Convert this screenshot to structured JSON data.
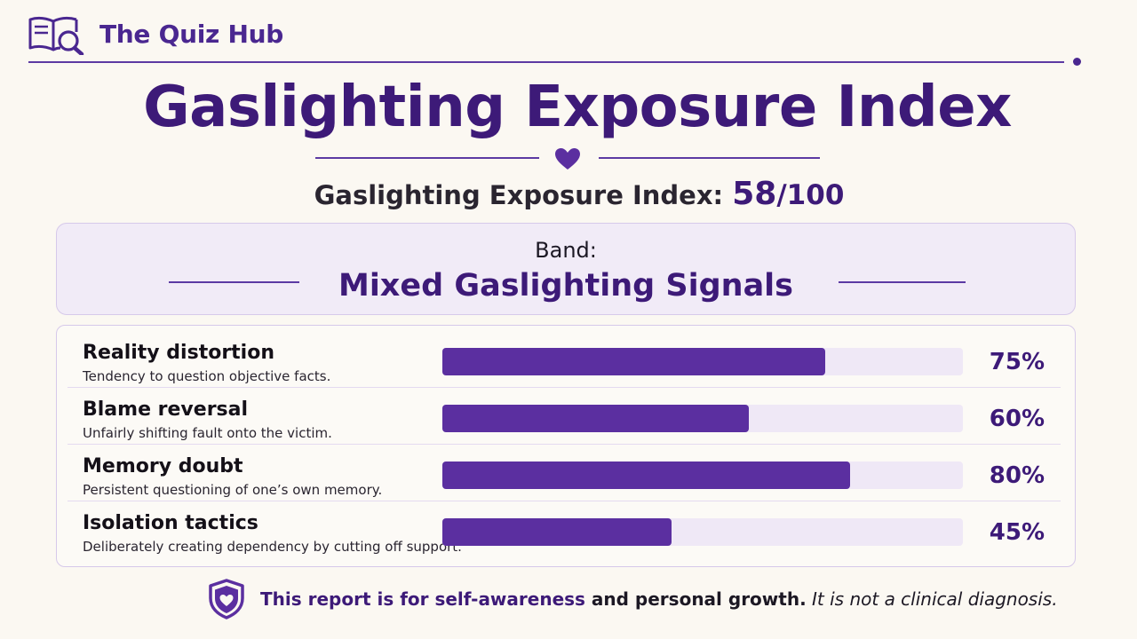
{
  "brand": {
    "name": "The Quiz Hub",
    "icon": "book-magnifier-icon"
  },
  "title": "Gaslighting Exposure Index",
  "score": {
    "label": "Gaslighting Exposure Index:",
    "value": "58",
    "max": "/100"
  },
  "band": {
    "label": "Band:",
    "value": "Mixed Gaslighting Signals"
  },
  "metrics": [
    {
      "name": "Reality distortion",
      "description": "Tendency to question objective facts.",
      "percent_text": "75%",
      "percent": 75
    },
    {
      "name": "Blame reversal",
      "description": "Unfairly shifting fault onto the victim.",
      "percent_text": "60%",
      "percent": 60
    },
    {
      "name": "Memory doubt",
      "description": "Persistent questioning of one’s own memory.",
      "percent_text": "80%",
      "percent": 80
    },
    {
      "name": "Isolation tactics",
      "description": "Deliberately creating dependency by cutting off support.",
      "percent_text": "45%",
      "percent": 45
    }
  ],
  "footer": {
    "icon": "shield-heart-icon",
    "part1": "This report is for self-awareness",
    "part2": " and personal growth.",
    "part3": " It is not a clinical diagnosis."
  },
  "colors": {
    "accent": "#3d1a78",
    "bar_fill": "#5b2fa0",
    "bar_track": "#efe8f6",
    "background": "#fbf8f2"
  }
}
